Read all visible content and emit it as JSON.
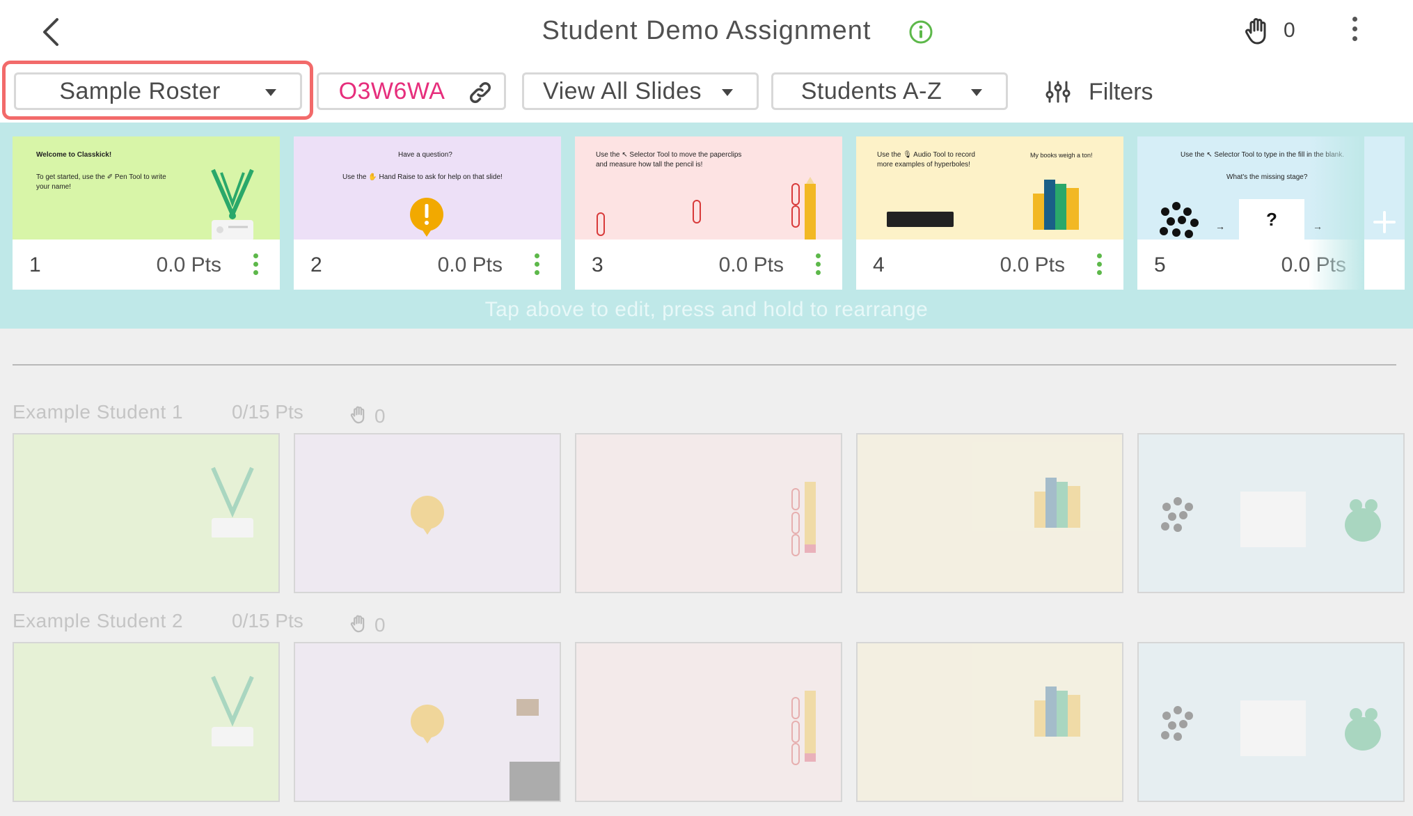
{
  "header": {
    "title": "Student Demo Assignment",
    "hand_count": "0"
  },
  "toolbar": {
    "roster_label": "Sample Roster",
    "class_code": "O3W6WA",
    "view_label": "View All Slides",
    "sort_label": "Students A-Z",
    "filters_label": "Filters"
  },
  "slides": [
    {
      "num": "1",
      "pts": "0.0 Pts",
      "bg": "#d8f5a8",
      "line1": "Welcome to Classkick!",
      "line2": "To get started, use the ✐ Pen Tool to write",
      "line3": "your name!"
    },
    {
      "num": "2",
      "pts": "0.0 Pts",
      "bg": "#ede0f7",
      "line1": "Have a question?",
      "line2": "Use the ✋ Hand Raise to ask for help on that slide!",
      "line3": ""
    },
    {
      "num": "3",
      "pts": "0.0 Pts",
      "bg": "#fde3e3",
      "line1": "Use the ↖ Selector Tool to move the paperclips",
      "line2": "and measure how tall the pencil is!",
      "line3": ""
    },
    {
      "num": "4",
      "pts": "0.0 Pts",
      "bg": "#fdf2c8",
      "line1": "Use the 🎙 Audio Tool to record",
      "line2": "more examples of hyperboles!",
      "line3": "My books weigh a ton!"
    },
    {
      "num": "5",
      "pts": "0.0 Pts",
      "bg": "#d6eef7",
      "line1": "Use the ↖ Selector Tool to type in the fill in the blank.",
      "line2": "What's the missing stage?",
      "line3": "?"
    }
  ],
  "hint": "Tap above to edit, press and hold to rearrange",
  "students": [
    {
      "name": "Example Student 1",
      "score": "0/15 Pts",
      "hands": "0"
    },
    {
      "name": "Example Student 2",
      "score": "0/15 Pts",
      "hands": "0"
    }
  ],
  "colors": {
    "accent_strip": "#bfe8e8",
    "highlight": "#f26a6a",
    "class_code": "#e62e7c",
    "kebab_green": "#5db84a"
  }
}
